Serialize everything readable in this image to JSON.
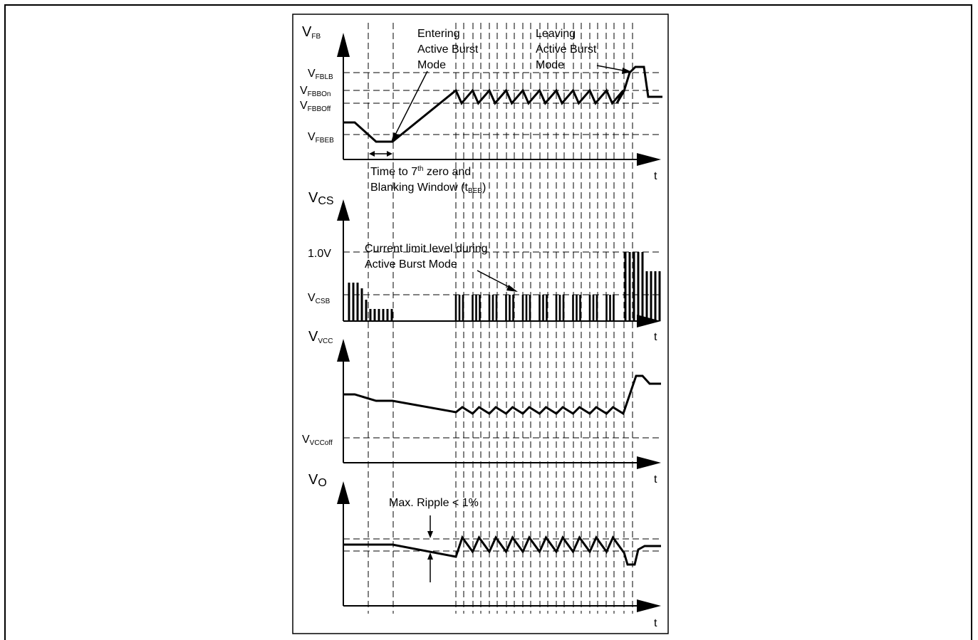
{
  "vfb_panel": {
    "v_label": "V",
    "v_sub": "FB",
    "t_label": "t",
    "levels": [
      {
        "main": "V",
        "sub": "FBLB"
      },
      {
        "main": "V",
        "sub": "FBBOn"
      },
      {
        "main": "V",
        "sub": "FBBOff"
      },
      {
        "main": "V",
        "sub": "FBEB"
      }
    ],
    "entering": [
      "Entering",
      "Active Burst",
      "Mode"
    ],
    "leaving": [
      "Leaving",
      "Active Burst",
      "Mode"
    ],
    "time_line1_a": "Time to 7",
    "time_line1_sup": "th",
    "time_line1_b": " zero and",
    "time_line2_a": "Blanking Window (t",
    "time_line2_sub": "BEB",
    "time_line2_b": ")"
  },
  "vcs_panel": {
    "v_label": "V",
    "v_sub": "CS",
    "t_label": "t",
    "level_1v": "1.0V",
    "vcsb_main": "V",
    "vcsb_sub": "CSB",
    "annotation": [
      "Current limit level during",
      "Active Burst Mode"
    ]
  },
  "vvcc_panel": {
    "v_label": "V",
    "v_sub": "VCC",
    "t_label": "t",
    "vccoff_main": "V",
    "vccoff_sub": "VCCoff"
  },
  "vo_panel": {
    "v_label": "V",
    "v_sub": "O",
    "t_label": "t",
    "ripple": "Max. Ripple < 1%"
  }
}
